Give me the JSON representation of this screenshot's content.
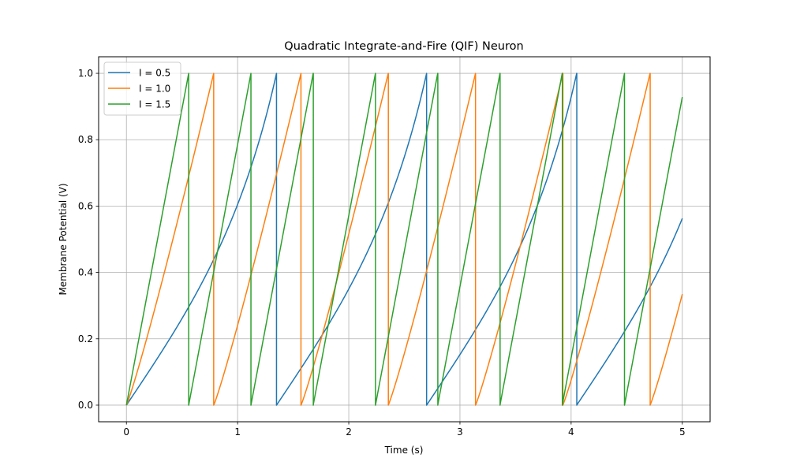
{
  "chart_data": {
    "type": "line",
    "title": "Quadratic Integrate-and-Fire (QIF) Neuron",
    "xlabel": "Time (s)",
    "ylabel": "Membrane Potential (V)",
    "xlim": [
      -0.25,
      5.25
    ],
    "ylim": [
      -0.05,
      1.05
    ],
    "xticks": [
      0,
      1,
      2,
      3,
      4,
      5
    ],
    "xtick_labels": [
      "0",
      "1",
      "2",
      "3",
      "4",
      "5"
    ],
    "yticks": [
      0.0,
      0.2,
      0.4,
      0.6,
      0.8,
      1.0
    ],
    "ytick_labels": [
      "0.0",
      "0.2",
      "0.4",
      "0.6",
      "0.8",
      "1.0"
    ],
    "grid": true,
    "legend_position": "top-left",
    "t_end": 5.0,
    "threshold": 1.0,
    "reset": 0.0,
    "series": [
      {
        "name": "I = 0.5",
        "current": 0.5,
        "color": "#1f77b4",
        "period": 1.35,
        "value_at_end": 0.556
      },
      {
        "name": "I = 1.0",
        "current": 1.0,
        "color": "#ff7f0e",
        "period": 0.785,
        "value_at_end": 0.29
      },
      {
        "name": "I = 1.5",
        "current": 1.5,
        "color": "#2ca02c",
        "period": 0.56,
        "value_at_end": 0.905
      }
    ]
  }
}
